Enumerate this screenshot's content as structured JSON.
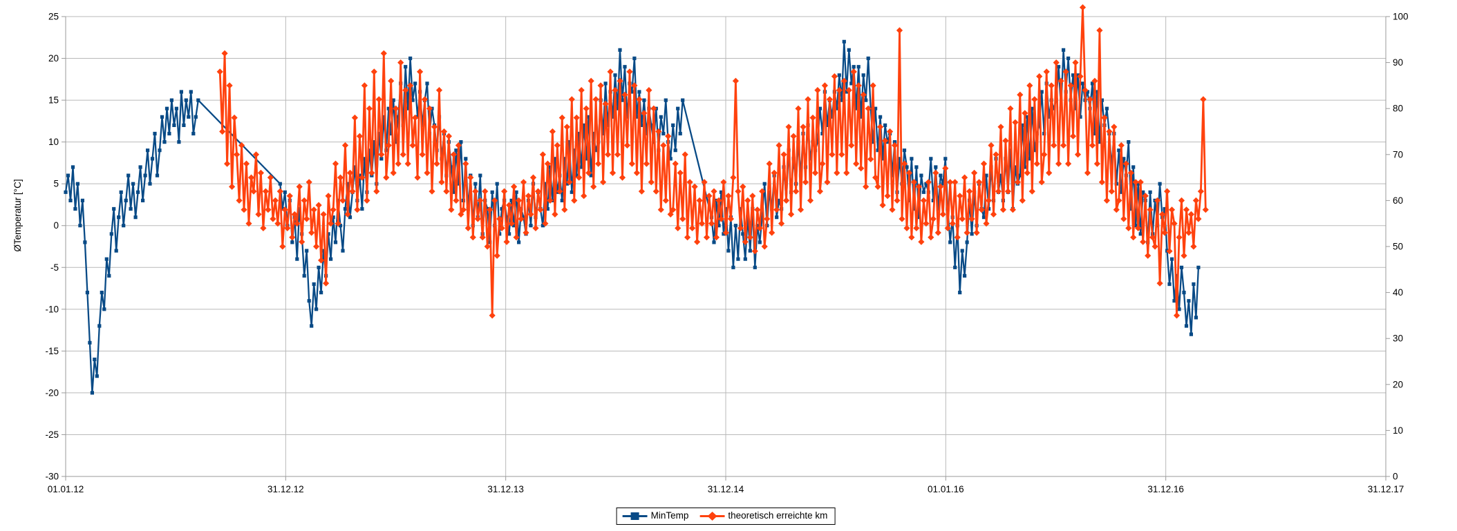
{
  "chart_data": {
    "type": "line",
    "title": "",
    "ylabel_left": "ØTemperatur [°C]",
    "x_tick_labels": [
      "01.01.12",
      "31.12.12",
      "31.12.13",
      "31.12.14",
      "01.01.16",
      "31.12.16",
      "31.12.17"
    ],
    "y_left": {
      "min": -30,
      "max": 25,
      "step": 5,
      "tick_labels": [
        "25",
        "20",
        "15",
        "10",
        "5",
        "0",
        "-5",
        "-10",
        "-15",
        "-20",
        "-25",
        "-30"
      ]
    },
    "y_right": {
      "min": 0,
      "max": 100,
      "step": 10,
      "tick_labels": [
        "100",
        "90",
        "80",
        "70",
        "60",
        "50",
        "40",
        "30",
        "20",
        "10",
        "0"
      ]
    },
    "x_domain_days": [
      0,
      2191
    ],
    "sample_step_days": 4,
    "grid": true,
    "legend_position": "bottom-center",
    "colors": {
      "grid": "#b9b9b9",
      "axis": "#9a9a9a",
      "text": "#000000"
    },
    "series": [
      {
        "name": "MinTemp",
        "axis": "left",
        "color": "#084a86",
        "marker": "square",
        "values": [
          4,
          6,
          3,
          7,
          2,
          5,
          0,
          3,
          -2,
          -8,
          -14,
          -20,
          -16,
          -18,
          -12,
          -8,
          -10,
          -4,
          -6,
          -1,
          2,
          -3,
          1,
          4,
          0,
          3,
          6,
          2,
          5,
          1,
          4,
          7,
          3,
          6,
          9,
          5,
          8,
          11,
          6,
          9,
          13,
          10,
          14,
          11,
          15,
          12,
          14,
          10,
          16,
          12,
          15,
          13,
          16,
          11,
          13,
          15,
          null,
          null,
          null,
          null,
          null,
          null,
          null,
          null,
          null,
          null,
          null,
          null,
          null,
          null,
          null,
          null,
          null,
          null,
          null,
          null,
          null,
          null,
          null,
          null,
          null,
          null,
          null,
          null,
          null,
          null,
          null,
          null,
          null,
          5,
          2,
          4,
          0,
          3,
          -2,
          1,
          -4,
          2,
          -1,
          -6,
          -3,
          -9,
          -12,
          -7,
          -10,
          -5,
          -8,
          -3,
          -6,
          -1,
          -4,
          1,
          -2,
          3,
          0,
          -3,
          2,
          5,
          1,
          4,
          7,
          3,
          6,
          2,
          8,
          4,
          9,
          6,
          10,
          5,
          11,
          8,
          13,
          9,
          14,
          11,
          15,
          10,
          13,
          17,
          12,
          19,
          14,
          20,
          15,
          17,
          13,
          16,
          12,
          15,
          17,
          11,
          14,
          12,
          9,
          13,
          8,
          11,
          6,
          10,
          7,
          4,
          9,
          5,
          10,
          3,
          8,
          2,
          6,
          0,
          5,
          1,
          6,
          -1,
          3,
          2,
          -2,
          4,
          0,
          5,
          -1,
          2,
          3,
          1,
          -1,
          3,
          0,
          4,
          -2,
          2,
          1,
          -1,
          3,
          0,
          5,
          1,
          4,
          2,
          0,
          5,
          2,
          7,
          3,
          8,
          4,
          6,
          3,
          8,
          5,
          10,
          4,
          9,
          6,
          11,
          7,
          12,
          8,
          13,
          6,
          11,
          9,
          10,
          15,
          11,
          17,
          12,
          16,
          13,
          18,
          14,
          21,
          15,
          19,
          13,
          17,
          16,
          20,
          13,
          16,
          12,
          15,
          11,
          14,
          12,
          10,
          14,
          9,
          13,
          11,
          15,
          10,
          8,
          12,
          9,
          14,
          11,
          15,
          null,
          null,
          null,
          null,
          null,
          null,
          null,
          null,
          null,
          null,
          null,
          1,
          -2,
          3,
          0,
          4,
          -1,
          2,
          -3,
          1,
          -5,
          0,
          -4,
          2,
          -1,
          -4,
          1,
          -3,
          2,
          -5,
          0,
          -2,
          1,
          5,
          0,
          4,
          2,
          6,
          1,
          3,
          2,
          7,
          3,
          9,
          4,
          8,
          5,
          10,
          6,
          11,
          7,
          12,
          8,
          10,
          9,
          10,
          14,
          11,
          16,
          12,
          15,
          13,
          16,
          14,
          18,
          15,
          22,
          16,
          21,
          17,
          19,
          14,
          19,
          13,
          18,
          15,
          20,
          14,
          10,
          14,
          9,
          13,
          8,
          12,
          10,
          11,
          6,
          10,
          4,
          8,
          5,
          9,
          7,
          3,
          8,
          2,
          7,
          1,
          6,
          4,
          5,
          4,
          8,
          3,
          7,
          2,
          6,
          5,
          8,
          2,
          -2,
          1,
          -5,
          0,
          -8,
          -3,
          -6,
          -2,
          3,
          -1,
          4,
          0,
          5,
          2,
          1,
          6,
          2,
          7,
          3,
          8,
          4,
          6,
          3,
          8,
          4,
          9,
          2,
          7,
          5,
          6,
          12,
          7,
          13,
          8,
          14,
          9,
          11,
          12,
          16,
          11,
          17,
          13,
          15,
          14,
          15,
          19,
          14,
          21,
          16,
          20,
          15,
          18,
          14,
          18,
          13,
          17,
          15,
          16,
          14,
          17,
          11,
          16,
          10,
          15,
          12,
          14,
          11,
          7,
          11,
          5,
          9,
          4,
          8,
          6,
          10,
          2,
          7,
          0,
          5,
          -1,
          4,
          3,
          -2,
          4,
          -1,
          3,
          0,
          5,
          1,
          2,
          -3,
          -7,
          -4,
          -9,
          -6,
          -10,
          -5,
          -8,
          -12,
          -9,
          -13,
          -7,
          -11,
          -5,
          null,
          null,
          null
        ]
      },
      {
        "name": "theoretisch erreichte km",
        "axis": "right",
        "color": "#ff420e",
        "marker": "diamond",
        "values": [
          null,
          null,
          null,
          null,
          null,
          null,
          null,
          null,
          null,
          null,
          null,
          null,
          null,
          null,
          null,
          null,
          null,
          null,
          null,
          null,
          null,
          null,
          null,
          null,
          null,
          null,
          null,
          null,
          null,
          null,
          null,
          null,
          null,
          null,
          null,
          null,
          null,
          null,
          null,
          null,
          null,
          null,
          null,
          null,
          null,
          null,
          null,
          null,
          null,
          null,
          null,
          null,
          null,
          null,
          null,
          null,
          null,
          null,
          null,
          null,
          null,
          null,
          null,
          null,
          88,
          75,
          92,
          68,
          85,
          63,
          78,
          70,
          60,
          72,
          58,
          68,
          55,
          65,
          62,
          70,
          57,
          66,
          54,
          62,
          58,
          65,
          56,
          60,
          55,
          62,
          50,
          58,
          54,
          61,
          52,
          57,
          55,
          63,
          51,
          60,
          56,
          64,
          53,
          58,
          50,
          59,
          47,
          57,
          42,
          61,
          55,
          58,
          68,
          55,
          65,
          60,
          72,
          57,
          66,
          62,
          78,
          58,
          74,
          65,
          85,
          60,
          80,
          66,
          88,
          62,
          82,
          70,
          92,
          65,
          72,
          86,
          66,
          80,
          68,
          90,
          70,
          84,
          68,
          85,
          72,
          78,
          65,
          88,
          70,
          82,
          66,
          80,
          62,
          76,
          68,
          84,
          64,
          75,
          62,
          74,
          58,
          70,
          60,
          72,
          57,
          58,
          68,
          54,
          65,
          52,
          62,
          56,
          60,
          52,
          62,
          50,
          58,
          35,
          60,
          48,
          56,
          54,
          62,
          51,
          59,
          55,
          63,
          52,
          60,
          56,
          64,
          53,
          61,
          57,
          65,
          54,
          62,
          58,
          70,
          55,
          68,
          60,
          75,
          57,
          72,
          62,
          78,
          58,
          76,
          64,
          82,
          60,
          78,
          65,
          84,
          61,
          80,
          66,
          86,
          63,
          82,
          68,
          85,
          64,
          81,
          70,
          88,
          66,
          84,
          70,
          86,
          65,
          83,
          72,
          88,
          68,
          85,
          66,
          82,
          62,
          79,
          68,
          84,
          64,
          80,
          62,
          75,
          58,
          72,
          60,
          74,
          57,
          58,
          68,
          54,
          66,
          56,
          70,
          52,
          64,
          54,
          63,
          51,
          60,
          55,
          64,
          52,
          61,
          55,
          62,
          52,
          60,
          56,
          64,
          53,
          61,
          56,
          65,
          86,
          62,
          54,
          63,
          51,
          60,
          52,
          61,
          49,
          58,
          54,
          62,
          50,
          56,
          68,
          53,
          66,
          58,
          72,
          55,
          70,
          60,
          76,
          57,
          74,
          62,
          80,
          58,
          76,
          64,
          82,
          60,
          78,
          66,
          84,
          62,
          68,
          85,
          64,
          82,
          70,
          87,
          66,
          84,
          70,
          86,
          66,
          84,
          72,
          88,
          68,
          85,
          67,
          83,
          63,
          80,
          69,
          85,
          65,
          63,
          76,
          59,
          73,
          61,
          75,
          58,
          72,
          60,
          97,
          56,
          68,
          54,
          66,
          52,
          64,
          54,
          63,
          51,
          60,
          55,
          64,
          52,
          56,
          66,
          53,
          63,
          57,
          67,
          54,
          64,
          55,
          64,
          52,
          61,
          56,
          65,
          53,
          62,
          56,
          66,
          53,
          64,
          58,
          68,
          55,
          60,
          72,
          57,
          70,
          62,
          76,
          58,
          73,
          62,
          80,
          58,
          77,
          64,
          83,
          60,
          79,
          66,
          85,
          62,
          82,
          68,
          87,
          64,
          70,
          88,
          66,
          85,
          72,
          90,
          68,
          86,
          72,
          88,
          68,
          85,
          74,
          90,
          70,
          87,
          102,
          84,
          66,
          82,
          72,
          86,
          68,
          97,
          64,
          78,
          60,
          75,
          62,
          76,
          58,
          60,
          72,
          56,
          68,
          54,
          66,
          52,
          64,
          54,
          64,
          51,
          61,
          48,
          58,
          52,
          50,
          60,
          42,
          57,
          53,
          62,
          49,
          58,
          55,
          35,
          52,
          60,
          48,
          58,
          53,
          57,
          50,
          60,
          56,
          62,
          82,
          58
        ]
      }
    ]
  },
  "legend": {
    "items": [
      {
        "label": "MinTemp"
      },
      {
        "label": "theoretisch erreichte km"
      }
    ]
  }
}
